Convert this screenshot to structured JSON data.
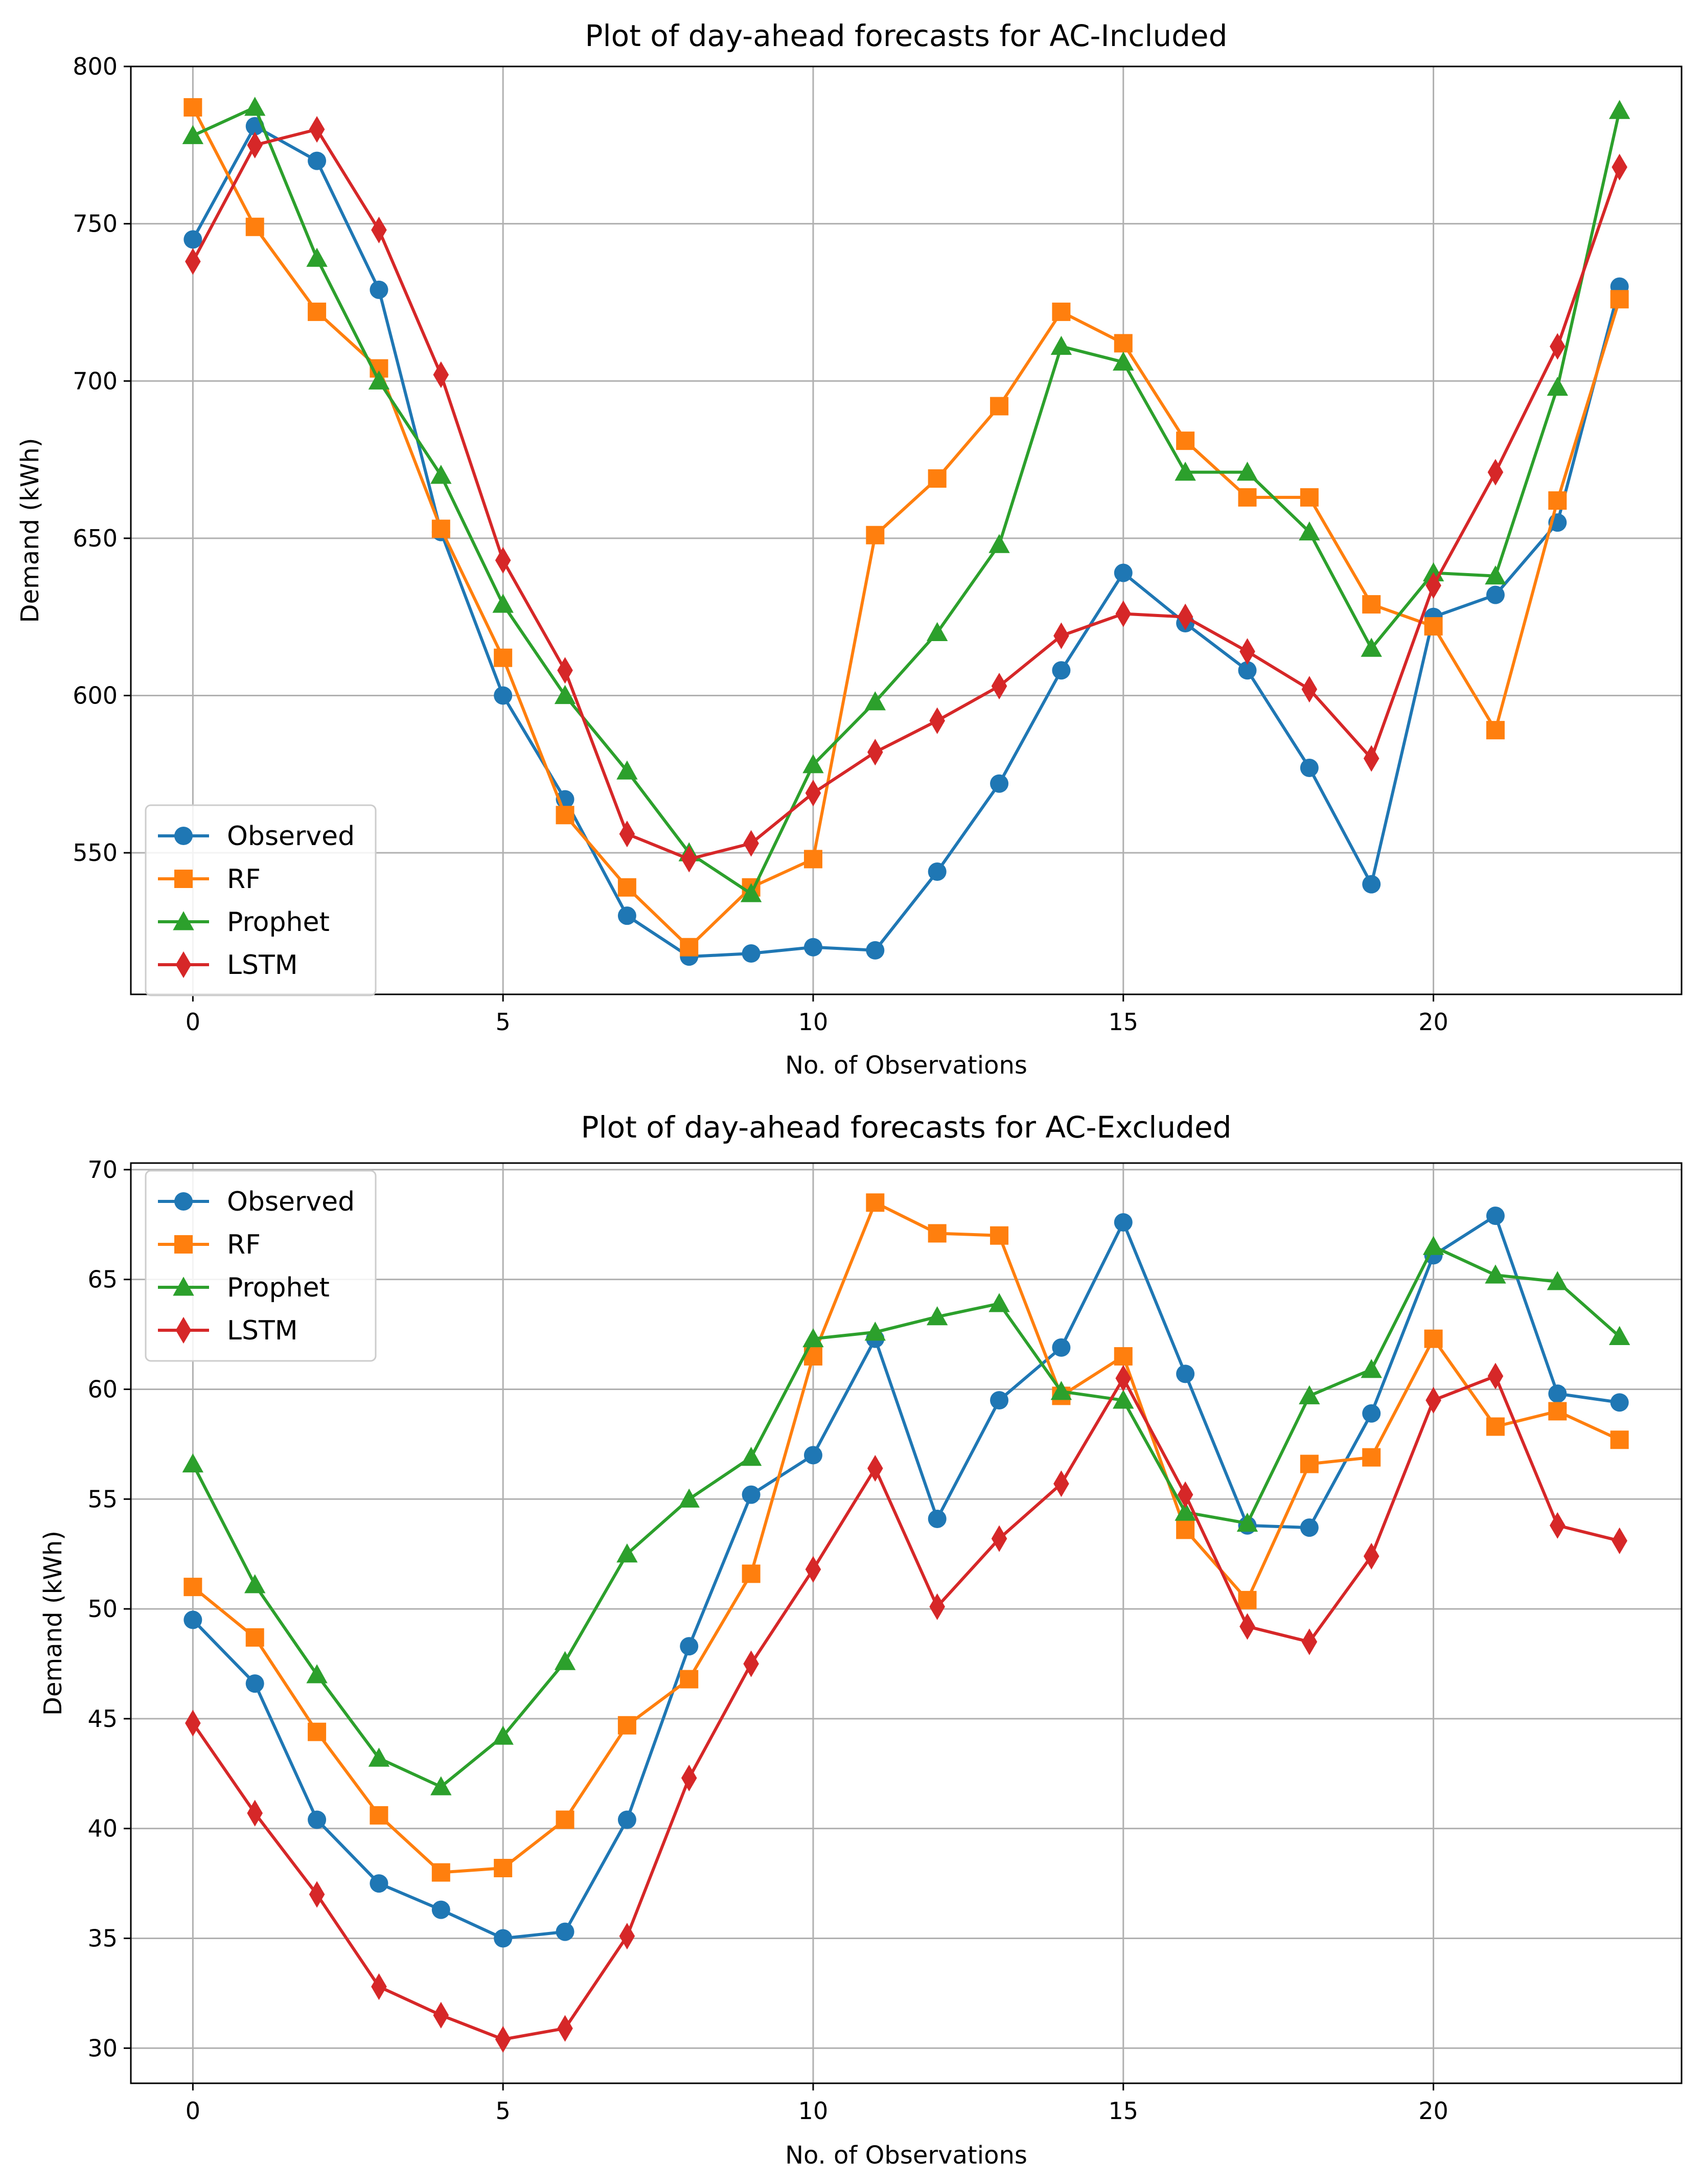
{
  "chart_data": [
    {
      "type": "line",
      "title": "Plot of day-ahead forecasts for AC-Included",
      "xlabel": "No. of Observations",
      "ylabel": "Demand (kWh)",
      "xlim": [
        -1,
        24
      ],
      "ylim": [
        505,
        800
      ],
      "x_ticks": [
        0,
        5,
        10,
        15,
        20
      ],
      "y_ticks": [
        550,
        600,
        650,
        700,
        750,
        800
      ],
      "grid": true,
      "legend_location": "lower-left",
      "x": [
        0,
        1,
        2,
        3,
        4,
        5,
        6,
        7,
        8,
        9,
        10,
        11,
        12,
        13,
        14,
        15,
        16,
        17,
        18,
        19,
        20,
        21,
        22,
        23
      ],
      "series": [
        {
          "name": "Observed",
          "color": "#1f77b4",
          "marker": "circle",
          "values": [
            745,
            781,
            770,
            729,
            652,
            600,
            567,
            530,
            517,
            518,
            520,
            519,
            544,
            572,
            608,
            639,
            623,
            608,
            577,
            540,
            625,
            632,
            655,
            730
          ]
        },
        {
          "name": "RF",
          "color": "#ff7f0e",
          "marker": "square",
          "values": [
            787,
            749,
            722,
            704,
            653,
            612,
            562,
            539,
            520,
            539,
            548,
            651,
            669,
            692,
            722,
            712,
            681,
            663,
            663,
            629,
            622,
            589,
            662,
            726
          ]
        },
        {
          "name": "Prophet",
          "color": "#2ca02c",
          "marker": "triangle",
          "values": [
            778,
            787,
            739,
            700,
            670,
            629,
            600,
            576,
            550,
            537,
            578,
            598,
            620,
            648,
            711,
            706,
            671,
            671,
            652,
            615,
            639,
            638,
            698,
            786
          ]
        },
        {
          "name": "LSTM",
          "color": "#d62728",
          "marker": "diamond",
          "values": [
            738,
            775,
            780,
            748,
            702,
            643,
            608,
            556,
            548,
            553,
            569,
            582,
            592,
            603,
            619,
            626,
            625,
            614,
            602,
            580,
            635,
            671,
            711,
            768
          ]
        }
      ]
    },
    {
      "type": "line",
      "title": "Plot of day-ahead forecasts for AC-Excluded",
      "xlabel": "No. of Observations",
      "ylabel": "Demand (kWh)",
      "xlim": [
        -1,
        24
      ],
      "ylim": [
        28.4,
        70.3
      ],
      "x_ticks": [
        0,
        5,
        10,
        15,
        20
      ],
      "y_ticks": [
        30,
        35,
        40,
        45,
        50,
        55,
        60,
        65,
        70
      ],
      "grid": true,
      "legend_location": "upper-left",
      "x": [
        0,
        1,
        2,
        3,
        4,
        5,
        6,
        7,
        8,
        9,
        10,
        11,
        12,
        13,
        14,
        15,
        16,
        17,
        18,
        19,
        20,
        21,
        22,
        23
      ],
      "series": [
        {
          "name": "Observed",
          "color": "#1f77b4",
          "marker": "circle",
          "values": [
            49.5,
            46.6,
            40.4,
            37.5,
            36.3,
            35.0,
            35.3,
            40.4,
            48.3,
            55.2,
            57.0,
            62.3,
            54.1,
            59.5,
            61.9,
            67.6,
            60.7,
            53.8,
            53.7,
            58.9,
            66.1,
            67.9,
            59.8,
            59.4
          ]
        },
        {
          "name": "RF",
          "color": "#ff7f0e",
          "marker": "square",
          "values": [
            51.0,
            48.7,
            44.4,
            40.6,
            38.0,
            38.2,
            40.4,
            44.7,
            46.8,
            51.6,
            61.5,
            68.5,
            67.1,
            67.0,
            59.7,
            61.5,
            53.6,
            50.4,
            56.6,
            56.9,
            62.3,
            58.3,
            59.0,
            57.7
          ]
        },
        {
          "name": "Prophet",
          "color": "#2ca02c",
          "marker": "triangle",
          "values": [
            56.6,
            51.1,
            47.0,
            43.2,
            41.9,
            44.2,
            47.6,
            52.5,
            55.0,
            56.9,
            62.3,
            62.6,
            63.3,
            63.9,
            59.9,
            59.5,
            54.4,
            53.9,
            59.7,
            60.9,
            66.5,
            65.2,
            64.9,
            62.4
          ]
        },
        {
          "name": "LSTM",
          "color": "#d62728",
          "marker": "diamond",
          "values": [
            44.8,
            40.7,
            37.0,
            32.8,
            31.5,
            30.4,
            30.9,
            35.1,
            42.3,
            47.5,
            51.8,
            56.4,
            50.1,
            53.2,
            55.7,
            60.5,
            55.2,
            49.2,
            48.5,
            52.4,
            59.5,
            60.6,
            53.8,
            53.1
          ]
        }
      ]
    }
  ]
}
